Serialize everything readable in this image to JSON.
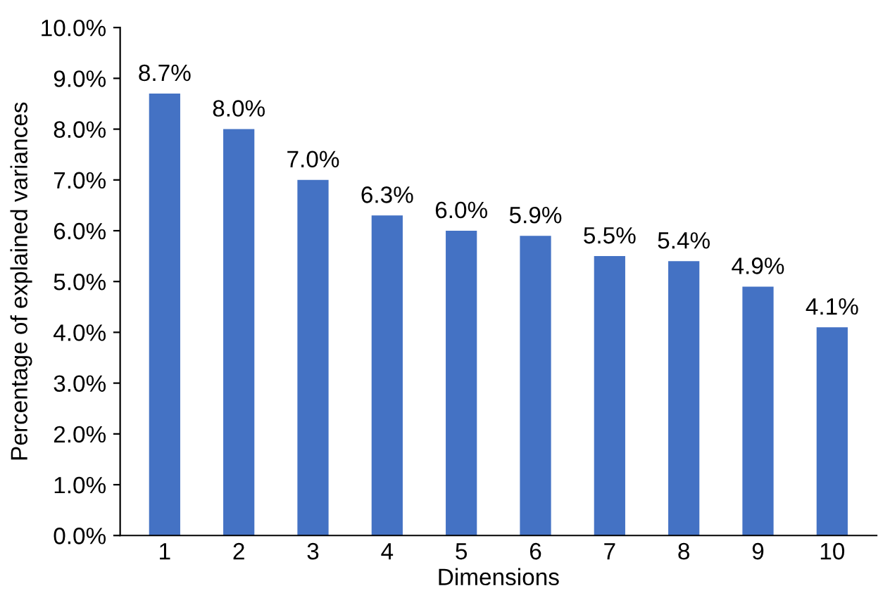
{
  "chart_data": {
    "type": "bar",
    "xlabel": "Dimensions",
    "ylabel": "Percentage of explained variances",
    "categories": [
      "1",
      "2",
      "3",
      "4",
      "5",
      "6",
      "7",
      "8",
      "9",
      "10"
    ],
    "values": [
      8.7,
      8.0,
      7.0,
      6.3,
      6.0,
      5.9,
      5.5,
      5.4,
      4.9,
      4.1
    ],
    "value_labels": [
      "8.7%",
      "8.0%",
      "7.0%",
      "6.3%",
      "6.0%",
      "5.9%",
      "5.5%",
      "5.4%",
      "4.9%",
      "4.1%"
    ],
    "color": "#4472c4",
    "ylim": [
      0,
      10
    ],
    "yticks": [
      {
        "value": 0,
        "label": "0.0%"
      },
      {
        "value": 1,
        "label": "1.0%"
      },
      {
        "value": 2,
        "label": "2.0%"
      },
      {
        "value": 3,
        "label": "3.0%"
      },
      {
        "value": 4,
        "label": "4.0%"
      },
      {
        "value": 5,
        "label": "5.0%"
      },
      {
        "value": 6,
        "label": "6.0%"
      },
      {
        "value": 7,
        "label": "7.0%"
      },
      {
        "value": 8,
        "label": "8.0%"
      },
      {
        "value": 9,
        "label": "9.0%"
      },
      {
        "value": 10,
        "label": "10.0%"
      }
    ],
    "grid": false,
    "legend": false
  }
}
